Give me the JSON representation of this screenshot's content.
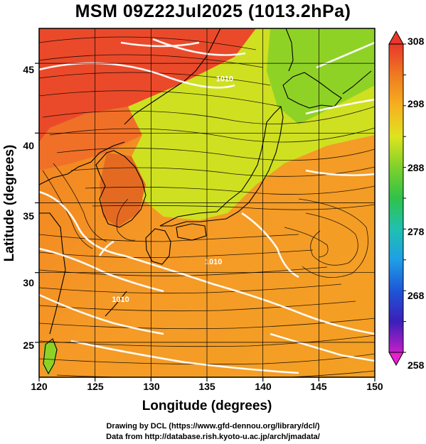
{
  "title": "MSM 09Z22Jul2025 (1013.2hPa)",
  "map": {
    "lon_range": [
      120,
      150
    ],
    "lat_range": [
      22.5,
      47.5
    ],
    "xlabel": "Longitude (degrees)",
    "ylabel": "Latitude  (degrees)",
    "x_ticks": [
      "120",
      "125",
      "130",
      "135",
      "140",
      "145",
      "150"
    ],
    "y_ticks": [
      "25",
      "30",
      "35",
      "40",
      "45"
    ],
    "field": "temperature (K) shaded, streamlines, isobars (white)",
    "contour_labels": [
      {
        "text": "1010",
        "lon": 134.8,
        "lat": 30.6
      },
      {
        "text": "1010",
        "lon": 126.5,
        "lat": 27.9
      },
      {
        "text": "1010",
        "lon": 135.8,
        "lat": 43.7
      }
    ]
  },
  "colorbar": {
    "min": 258,
    "max": 308,
    "tick_labels": [
      "308",
      "298",
      "288",
      "278",
      "268",
      "258"
    ]
  },
  "credits": {
    "line1": "Drawing by DCL (https://www.gfd-dennou.org/library/dcl/)",
    "line2": "Data from http://database.rish.kyoto-u.ac.jp/arch/jmadata/"
  }
}
